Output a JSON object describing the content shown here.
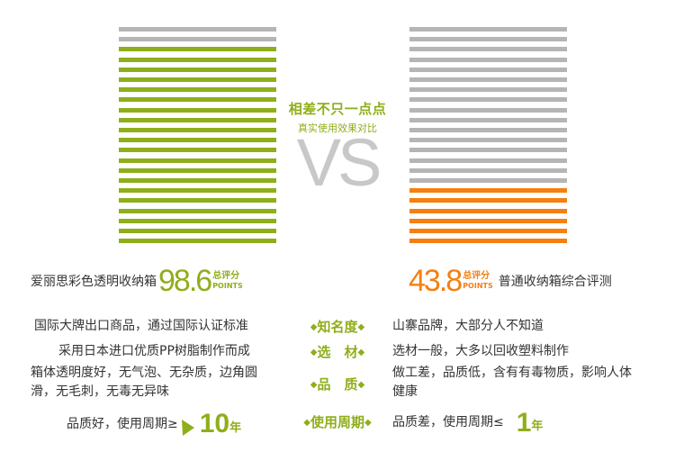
{
  "colors": {
    "green": "#8fae1b",
    "gray": "#b5b5b5",
    "orange": "#f57f11"
  },
  "center": {
    "tagline": "相差不只一点点",
    "subtagline": "真实使用效果对比",
    "vs": "VS"
  },
  "left": {
    "brand": "爱丽思彩色透明收纳箱",
    "score": "98.6",
    "unit_top": "总评分",
    "unit_bottom": "POINTS",
    "stripes": {
      "total": 22,
      "gray_top": 2
    },
    "rows": [
      "国际大牌出口商品，通过国际认证标准",
      "采用日本进口优质PP树脂制作而成",
      "箱体透明度好，无气泡、无杂质，边角圆滑，无毛刺，无毒无异味"
    ],
    "period_text": "品质好，使用周期≥",
    "period_value": "10",
    "period_unit": "年"
  },
  "right": {
    "brand": "普通收纳箱综合评测",
    "score": "43.8",
    "unit_top": "总评分",
    "unit_bottom": "POINTS",
    "stripes": {
      "total": 22,
      "gray_top": 16
    },
    "rows": [
      "山寨品牌，大部分人不知道",
      "选材一般，大多以回收塑料制作",
      "做工差，品质低，含有有毒物质，影响人体健康"
    ],
    "period_text": "品质差，使用周期≤",
    "period_value": "1",
    "period_unit": "年"
  },
  "criteria": [
    "知名度",
    "选　材",
    "品　质",
    "使用周期"
  ],
  "diamond": "◆"
}
